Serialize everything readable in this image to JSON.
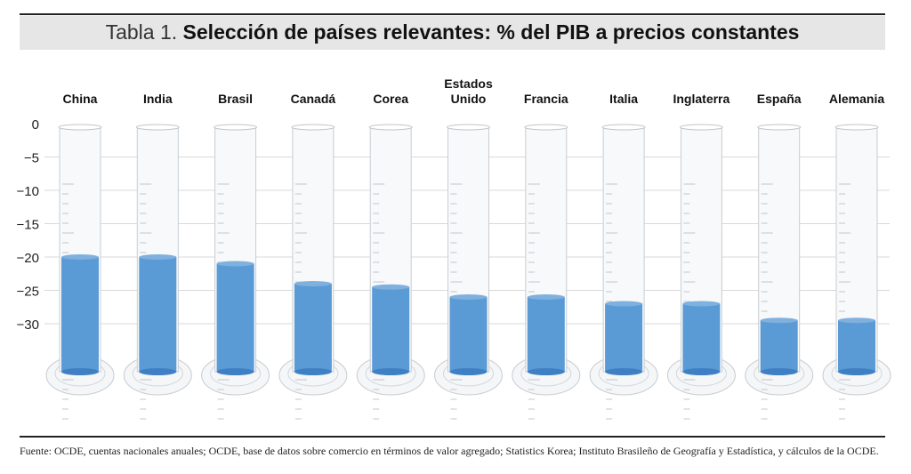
{
  "chart_data": {
    "type": "bar",
    "title_prefix": "Tabla 1.",
    "title": "Selección de países relevantes: % del PIB a precios constantes",
    "categories": [
      "China",
      "India",
      "Brasil",
      "Canadá",
      "Corea",
      "Estados Unido",
      "Francia",
      "Italia",
      "Inglaterra",
      "España",
      "Alemania"
    ],
    "values": [
      -20,
      -20,
      -21,
      -24,
      -24.5,
      -26,
      -26,
      -27,
      -27,
      -29.5,
      -29.5
    ],
    "yticks": [
      0,
      -5,
      -10,
      -15,
      -20,
      -25,
      -30
    ],
    "ylim": [
      -37,
      0
    ],
    "grid": true,
    "xlabel": "",
    "ylabel": "",
    "colors": {
      "liquid": "#5b9bd5",
      "grid": "#d9d9d9"
    }
  },
  "source": "Fuente: OCDE, cuentas nacionales anuales; OCDE, base de datos sobre comercio en términos de valor agregado; Statistics Korea; Instituto Brasileño de Geografía y Estadística, y cálculos de la OCDE."
}
